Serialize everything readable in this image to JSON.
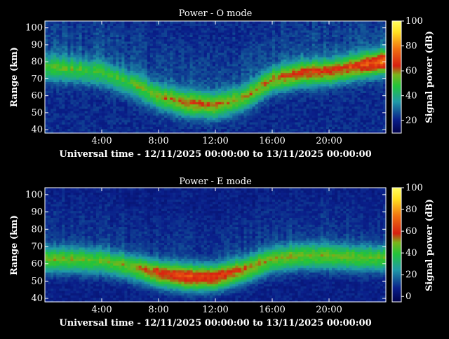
{
  "chart_data": [
    {
      "type": "heatmap",
      "title": "Power - O mode",
      "xlabel": "Universal time - 12/11/2025 00:00:00 to 13/11/2025 00:00:00",
      "ylabel": "Range (km)",
      "xlim": [
        0,
        24
      ],
      "ylim": [
        38,
        104
      ],
      "x_ticks": [
        {
          "v": 4,
          "label": "4:00"
        },
        {
          "v": 8,
          "label": "8:00"
        },
        {
          "v": 12,
          "label": "12:00"
        },
        {
          "v": 16,
          "label": "16:00"
        },
        {
          "v": 20,
          "label": "20:00"
        }
      ],
      "y_ticks": [
        40,
        50,
        60,
        70,
        80,
        90,
        100
      ],
      "colorbar": {
        "label": "Signal power (dB)",
        "range": [
          10,
          100
        ],
        "ticks": [
          20,
          40,
          60,
          80,
          100
        ]
      },
      "layer_center_km": [
        [
          0,
          76
        ],
        [
          2,
          75
        ],
        [
          4,
          73
        ],
        [
          6,
          67
        ],
        [
          8,
          59
        ],
        [
          10,
          55
        ],
        [
          12,
          54
        ],
        [
          14,
          58
        ],
        [
          16,
          69
        ],
        [
          18,
          73
        ],
        [
          20,
          74
        ],
        [
          22,
          77
        ],
        [
          24,
          80
        ]
      ],
      "layer_peak_db": [
        [
          0,
          46
        ],
        [
          2,
          47
        ],
        [
          4,
          45
        ],
        [
          6,
          46
        ],
        [
          8,
          52
        ],
        [
          10,
          58
        ],
        [
          12,
          57
        ],
        [
          14,
          52
        ],
        [
          16,
          56
        ],
        [
          18,
          62
        ],
        [
          20,
          61
        ],
        [
          22,
          63
        ],
        [
          24,
          72
        ]
      ],
      "layer_halfwidth_km": 5
    },
    {
      "type": "heatmap",
      "title": "Power - E mode",
      "xlabel": "Universal time - 12/11/2025 00:00:00 to 13/11/2025 00:00:00",
      "ylabel": "Range (km)",
      "xlim": [
        0,
        24
      ],
      "ylim": [
        38,
        104
      ],
      "x_ticks": [
        {
          "v": 4,
          "label": "4:00"
        },
        {
          "v": 8,
          "label": "8:00"
        },
        {
          "v": 12,
          "label": "12:00"
        },
        {
          "v": 16,
          "label": "16:00"
        },
        {
          "v": 20,
          "label": "20:00"
        }
      ],
      "y_ticks": [
        40,
        50,
        60,
        70,
        80,
        90,
        100
      ],
      "colorbar": {
        "label": "Signal power (dB)",
        "range": [
          -5,
          100
        ],
        "ticks": [
          0,
          20,
          40,
          60,
          80,
          100
        ]
      },
      "layer_center_km": [
        [
          0,
          62
        ],
        [
          2,
          62
        ],
        [
          4,
          61
        ],
        [
          6,
          58
        ],
        [
          8,
          54
        ],
        [
          10,
          52
        ],
        [
          12,
          52
        ],
        [
          14,
          56
        ],
        [
          16,
          62
        ],
        [
          18,
          64
        ],
        [
          20,
          64
        ],
        [
          22,
          63
        ],
        [
          24,
          63
        ]
      ],
      "layer_peak_db": [
        [
          0,
          42
        ],
        [
          2,
          42
        ],
        [
          4,
          40
        ],
        [
          6,
          44
        ],
        [
          8,
          56
        ],
        [
          10,
          62
        ],
        [
          12,
          60
        ],
        [
          14,
          50
        ],
        [
          16,
          44
        ],
        [
          18,
          44
        ],
        [
          20,
          43
        ],
        [
          22,
          42
        ],
        [
          24,
          42
        ]
      ],
      "layer_halfwidth_km": 5
    }
  ]
}
